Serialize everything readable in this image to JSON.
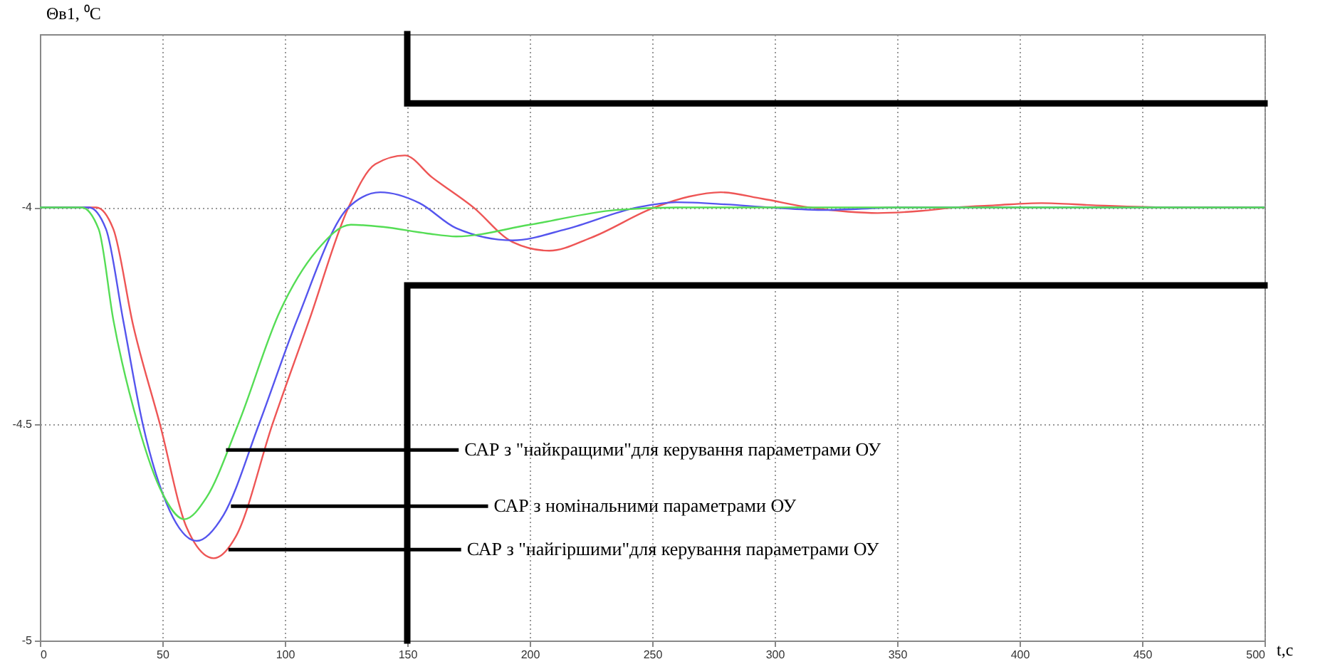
{
  "chart_data": {
    "type": "line",
    "xlabel": "t,c",
    "ylabel": "Θв1, ⁰C",
    "xlim": [
      0,
      500
    ],
    "xticks": [
      0,
      50,
      100,
      150,
      200,
      250,
      300,
      350,
      400,
      450,
      500
    ],
    "ylim": [
      -5,
      -3.6
    ],
    "yticks": [
      {
        "value": -5,
        "label": "-5"
      },
      {
        "value": -4.5,
        "label": "-4.5"
      },
      {
        "value": -4,
        "label": "-4"
      }
    ],
    "grid": true,
    "legend": false,
    "series": [
      {
        "color": "#ee5555",
        "x": [
          0,
          23,
          30,
          38,
          49,
          60,
          71,
          80,
          95,
          110,
          126,
          137,
          149,
          160,
          177,
          193,
          208,
          225,
          251,
          265,
          278,
          295,
          314,
          330,
          342,
          360,
          374,
          390,
          409,
          430,
          460,
          500
        ],
        "values": [
          -4,
          -4,
          -4.05,
          -4.27,
          -4.5,
          -4.74,
          -4.81,
          -4.76,
          -4.5,
          -4.26,
          -4,
          -3.9,
          -3.88,
          -3.93,
          -4,
          -4.08,
          -4.1,
          -4.07,
          -4,
          -3.975,
          -3.965,
          -3.98,
          -4,
          -4.01,
          -4.013,
          -4.008,
          -4,
          -3.995,
          -3.99,
          -3.995,
          -4,
          -4
        ]
      },
      {
        "color": "#5555ee",
        "x": [
          0,
          20,
          27,
          34,
          42,
          53,
          64,
          75,
          89.5,
          105,
          126,
          139,
          155,
          170,
          193,
          215,
          244,
          260,
          280,
          298,
          321,
          350,
          500
        ],
        "values": [
          -4,
          -4,
          -4.05,
          -4.26,
          -4.5,
          -4.7,
          -4.77,
          -4.71,
          -4.5,
          -4.26,
          -4,
          -3.965,
          -3.99,
          -4.048,
          -4.076,
          -4.05,
          -4,
          -3.988,
          -3.993,
          -4,
          -4.006,
          -4,
          -4
        ]
      },
      {
        "color": "#55dd55",
        "x": [
          0,
          17,
          24,
          30,
          40,
          50,
          59,
          68,
          81,
          98,
          113,
          127,
          140,
          158,
          170,
          200,
          235,
          260,
          500
        ],
        "values": [
          -4,
          -4,
          -4.05,
          -4.26,
          -4.5,
          -4.66,
          -4.72,
          -4.67,
          -4.5,
          -4.24,
          -4.1,
          -4.04,
          -4.045,
          -4.06,
          -4.067,
          -4.04,
          -4.006,
          -4,
          -4
        ]
      },
      {
        "color": "#000000",
        "x": [
          150,
          150,
          500
        ],
        "values": [
          -3.6,
          -3.76,
          -3.76
        ]
      },
      {
        "color": "#000000",
        "x": [
          150,
          150,
          500
        ],
        "values": [
          -5,
          -4.18,
          -4.18
        ]
      }
    ],
    "annotations": [
      {
        "text": "САР з \"найкращими\"для керування параметрами ОУ",
        "x": 76,
        "y": -4.56
      },
      {
        "text": "САР з номінальними параметрами ОУ",
        "x": 78,
        "y": -4.69
      },
      {
        "text": "САР з \"найгіршими\"для керування параметрами ОУ",
        "x": 77,
        "y": -4.79
      }
    ]
  }
}
